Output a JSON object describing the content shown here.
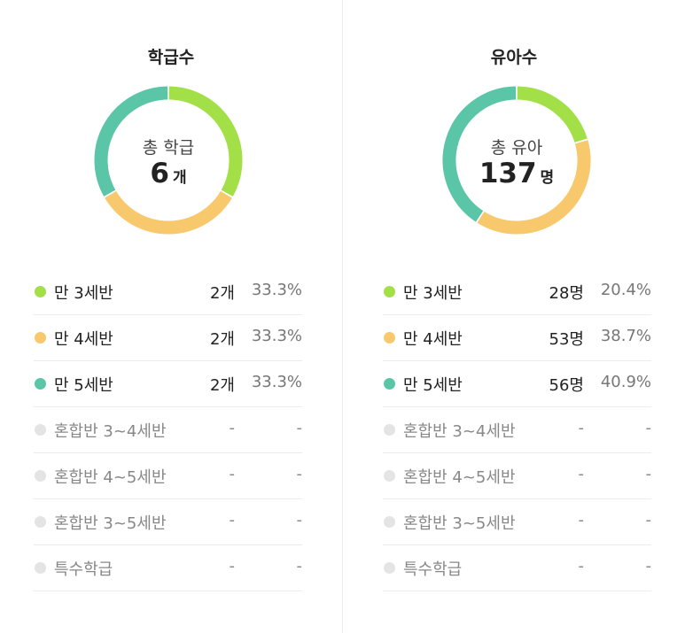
{
  "colors": {
    "green": "#a3e048",
    "yellow": "#f8c86c",
    "teal": "#5bc5a7",
    "inactive": "#e4e4e4"
  },
  "chart_data": [
    {
      "type": "pie",
      "title": "학급수",
      "center_label": "총 학급",
      "center_value": "6",
      "center_unit": "개",
      "categories": [
        "만 3세반",
        "만 4세반",
        "만 5세반",
        "혼합반 3~4세반",
        "혼합반 4~5세반",
        "혼합반 3~5세반",
        "특수학급"
      ],
      "values": [
        2,
        2,
        2,
        0,
        0,
        0,
        0
      ],
      "count_labels": [
        "2개",
        "2개",
        "2개",
        "-",
        "-",
        "-",
        "-"
      ],
      "percent_labels": [
        "33.3%",
        "33.3%",
        "33.3%",
        "-",
        "-",
        "-",
        "-"
      ],
      "slice_colors": [
        "#a3e048",
        "#f8c86c",
        "#5bc5a7",
        "#e4e4e4",
        "#e4e4e4",
        "#e4e4e4",
        "#e4e4e4"
      ]
    },
    {
      "type": "pie",
      "title": "유아수",
      "center_label": "총 유아",
      "center_value": "137",
      "center_unit": "명",
      "categories": [
        "만 3세반",
        "만 4세반",
        "만 5세반",
        "혼합반 3~4세반",
        "혼합반 4~5세반",
        "혼합반 3~5세반",
        "특수학급"
      ],
      "values": [
        28,
        53,
        56,
        0,
        0,
        0,
        0
      ],
      "count_labels": [
        "28명",
        "53명",
        "56명",
        "-",
        "-",
        "-",
        "-"
      ],
      "percent_labels": [
        "20.4%",
        "38.7%",
        "40.9%",
        "-",
        "-",
        "-",
        "-"
      ],
      "slice_colors": [
        "#a3e048",
        "#f8c86c",
        "#5bc5a7",
        "#e4e4e4",
        "#e4e4e4",
        "#e4e4e4",
        "#e4e4e4"
      ]
    }
  ]
}
